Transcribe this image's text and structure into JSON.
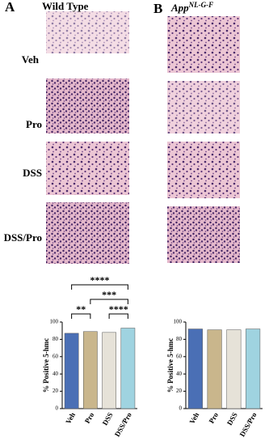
{
  "panels": [
    {
      "letter": "A",
      "title": "Wild Type"
    },
    {
      "letter": "B",
      "title": "App",
      "title_sup": "NL-G-F"
    }
  ],
  "row_labels": [
    "Veh",
    "Pro",
    "DSS",
    "DSS/Pro"
  ],
  "chart_data": [
    {
      "type": "bar",
      "y_label": "% Positive 5-hmc",
      "categories": [
        "Veh",
        "Pro",
        "DSS",
        "DSS/Pro"
      ],
      "values": [
        87,
        89,
        88,
        93
      ],
      "colors": [
        "#4a6fb5",
        "#c9b68c",
        "#e6e2d8",
        "#9fd3e0"
      ],
      "ylim": [
        0,
        100
      ],
      "yticks": [
        0,
        20,
        40,
        60,
        80,
        100
      ],
      "significance": [
        {
          "label": "****",
          "pair": [
            "Veh",
            "DSS/Pro"
          ]
        },
        {
          "label": "***",
          "pair": [
            "Pro",
            "DSS/Pro"
          ]
        },
        {
          "label": "**",
          "pair": [
            "Veh",
            "Pro"
          ]
        },
        {
          "label": "****",
          "pair": [
            "DSS",
            "DSS/Pro"
          ]
        }
      ]
    },
    {
      "type": "bar",
      "y_label": "% Positive 5-hmc",
      "categories": [
        "Veh",
        "Pro",
        "DSS",
        "DSS/Pro"
      ],
      "values": [
        92,
        91,
        91,
        92
      ],
      "colors": [
        "#4a6fb5",
        "#c9b68c",
        "#e6e2d8",
        "#9fd3e0"
      ],
      "ylim": [
        0,
        100
      ],
      "yticks": [
        0,
        20,
        40,
        60,
        80,
        100
      ]
    }
  ]
}
